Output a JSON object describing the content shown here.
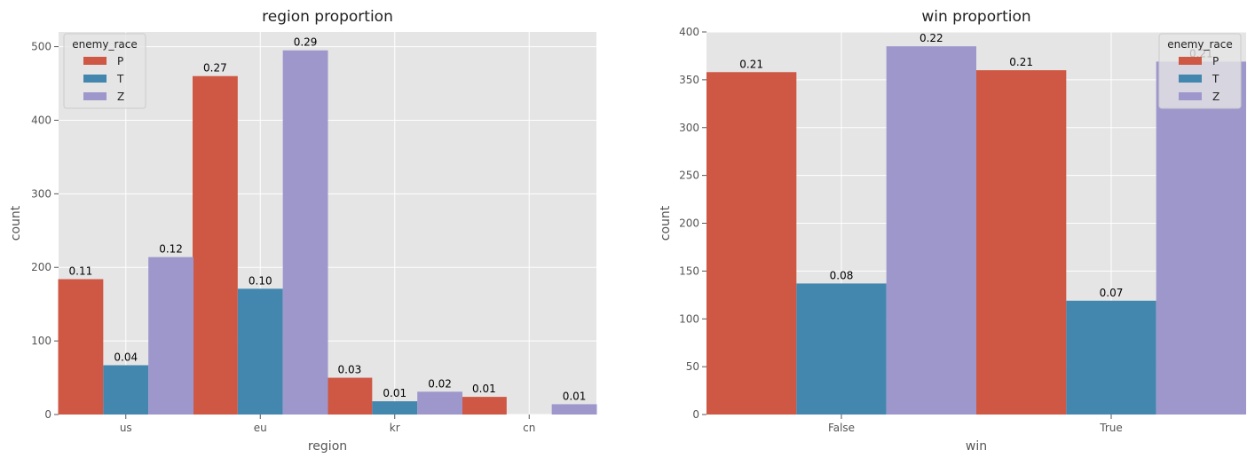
{
  "colors": {
    "plot_background": "#E5E5E5",
    "grid": "#FFFFFF",
    "P": "#CF5845",
    "T": "#4487AE",
    "Z": "#9D97CC"
  },
  "chart_data": [
    {
      "type": "bar",
      "title": "region proportion",
      "xlabel": "region",
      "ylabel": "count",
      "categories": [
        "us",
        "eu",
        "kr",
        "cn"
      ],
      "ylim": [
        0,
        520
      ],
      "yticks": [
        0,
        100,
        200,
        300,
        400,
        500
      ],
      "grid": true,
      "legend": {
        "title": "enemy_race",
        "placement": "top-left"
      },
      "series": [
        {
          "name": "P",
          "values": [
            184,
            460,
            50,
            24
          ],
          "labels": [
            "0.11",
            "0.27",
            "0.03",
            "0.01"
          ]
        },
        {
          "name": "T",
          "values": [
            67,
            171,
            18,
            0
          ],
          "labels": [
            "0.04",
            "0.10",
            "0.01",
            ""
          ]
        },
        {
          "name": "Z",
          "values": [
            214,
            495,
            31,
            14
          ],
          "labels": [
            "0.12",
            "0.29",
            "0.02",
            "0.01"
          ]
        }
      ]
    },
    {
      "type": "bar",
      "title": "win proportion",
      "xlabel": "win",
      "ylabel": "count",
      "categories": [
        "False",
        "True"
      ],
      "ylim": [
        0,
        400
      ],
      "yticks": [
        0,
        50,
        100,
        150,
        200,
        250,
        300,
        350,
        400
      ],
      "grid": true,
      "legend": {
        "title": "enemy_race",
        "placement": "top-right"
      },
      "series": [
        {
          "name": "P",
          "values": [
            358,
            360
          ],
          "labels": [
            "0.21",
            "0.21"
          ]
        },
        {
          "name": "T",
          "values": [
            137,
            119
          ],
          "labels": [
            "0.08",
            "0.07"
          ]
        },
        {
          "name": "Z",
          "values": [
            385,
            369
          ],
          "labels": [
            "0.22",
            "0.21"
          ]
        }
      ]
    }
  ]
}
